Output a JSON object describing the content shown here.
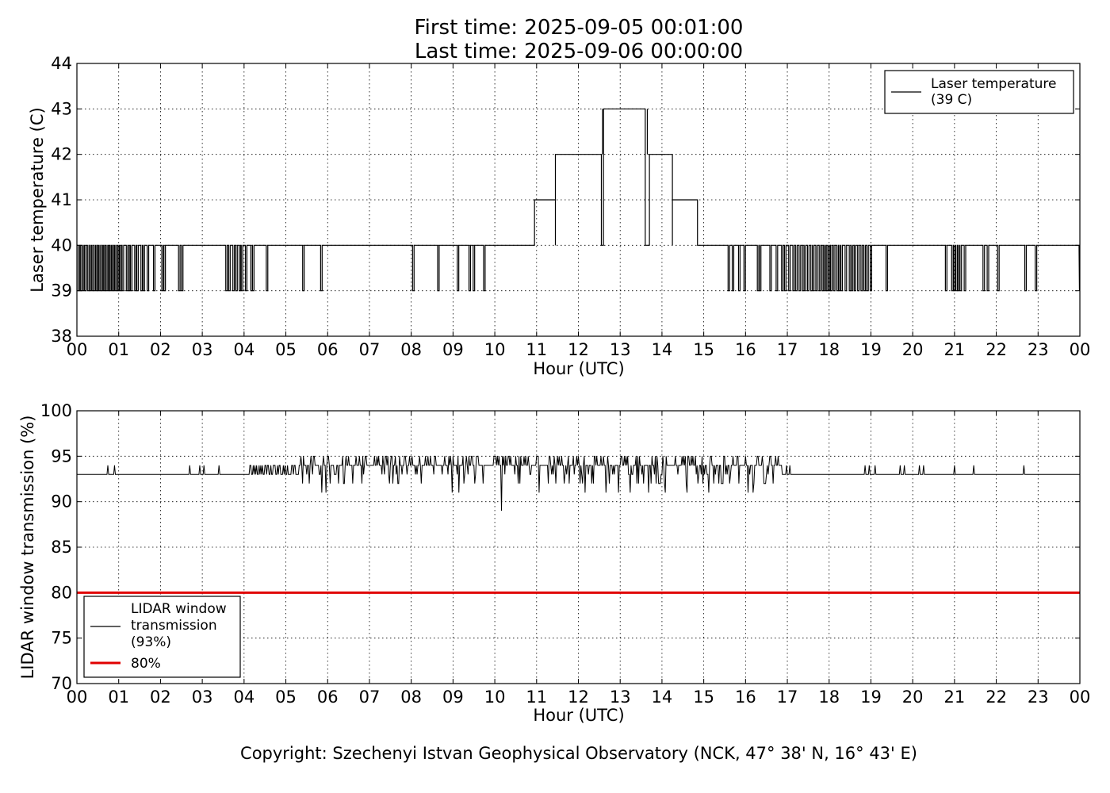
{
  "header": {
    "first_time": "First time: 2025-09-05 00:01:00",
    "last_time": "Last time: 2025-09-06 00:00:00"
  },
  "copyright": "Copyright: Szechenyi Istvan Geophysical Observatory (NCK, 47° 38' N, 16° 43' E)",
  "colors": {
    "series": "#000000",
    "threshold": "#e00000"
  },
  "chart_data": [
    {
      "type": "line",
      "xlabel": "Hour (UTC)",
      "ylabel": "Laser temperature (C)",
      "xlim": [
        0,
        24
      ],
      "ylim": [
        38,
        44
      ],
      "grid": true,
      "legend_position": "top-right",
      "x_tick_labels": [
        "00",
        "01",
        "02",
        "03",
        "04",
        "05",
        "06",
        "07",
        "08",
        "09",
        "10",
        "11",
        "12",
        "13",
        "14",
        "15",
        "16",
        "17",
        "18",
        "19",
        "20",
        "21",
        "22",
        "23",
        "00"
      ],
      "y_ticks": [
        38,
        39,
        40,
        41,
        42,
        43,
        44
      ],
      "legend": [
        "Laser temperature",
        "(39 C)"
      ],
      "base_level": 40,
      "levels": [
        {
          "from": 10.95,
          "to": 11.45,
          "y": 41
        },
        {
          "from": 11.45,
          "to": 12.55,
          "y": 42
        },
        {
          "from": 12.6,
          "to": 13.6,
          "y": 43
        },
        {
          "from": 13.7,
          "to": 14.25,
          "y": 42
        },
        {
          "from": 14.25,
          "to": 14.85,
          "y": 41
        }
      ],
      "dips": [
        0.05,
        0.1,
        0.15,
        0.2,
        0.27,
        0.32,
        0.38,
        0.42,
        0.47,
        0.5,
        0.55,
        0.6,
        0.65,
        0.68,
        0.72,
        0.77,
        0.8,
        0.85,
        0.88,
        0.93,
        0.97,
        1.0,
        1.05,
        1.1,
        1.2,
        1.25,
        1.3,
        1.4,
        1.45,
        1.55,
        1.6,
        1.7,
        1.85,
        2.05,
        2.1,
        2.45,
        2.52,
        3.58,
        3.65,
        3.75,
        3.82,
        3.9,
        3.95,
        4.05,
        4.18,
        4.22,
        4.55,
        5.42,
        5.85,
        8.05,
        8.65,
        9.12,
        9.4,
        9.5,
        9.75,
        15.6,
        15.7,
        15.85,
        15.98,
        16.3,
        16.35,
        16.6,
        16.75,
        16.88,
        16.95,
        17.05,
        17.15,
        17.22,
        17.3,
        17.38,
        17.42,
        17.5,
        17.58,
        17.62,
        17.7,
        17.78,
        17.85,
        17.9,
        17.95,
        18.0,
        18.05,
        18.12,
        18.2,
        18.25,
        18.3,
        18.4,
        18.5,
        18.55,
        18.62,
        18.7,
        18.78,
        18.85,
        18.92,
        19.0,
        19.38,
        20.8,
        20.95,
        21.0,
        21.05,
        21.1,
        21.15,
        21.25,
        21.7,
        21.8,
        22.05,
        22.7,
        22.95
      ]
    },
    {
      "type": "line",
      "xlabel": "Hour (UTC)",
      "ylabel": "LIDAR window transmission (%)",
      "xlim": [
        0,
        24
      ],
      "ylim": [
        70,
        100
      ],
      "grid": true,
      "legend_position": "lower-left",
      "x_tick_labels": [
        "00",
        "01",
        "02",
        "03",
        "04",
        "05",
        "06",
        "07",
        "08",
        "09",
        "10",
        "11",
        "12",
        "13",
        "14",
        "15",
        "16",
        "17",
        "18",
        "19",
        "20",
        "21",
        "22",
        "23",
        "00"
      ],
      "y_ticks": [
        70,
        75,
        80,
        85,
        90,
        95,
        100
      ],
      "series": [
        {
          "name": "LIDAR window transmission (93%)",
          "baseline": 93,
          "noisy_from": 5.3,
          "noisy_to": 16.8,
          "spikes": [
            0.75,
            0.9,
            2.7,
            2.95,
            3.05,
            3.4,
            4.15,
            4.25,
            4.4,
            4.55,
            4.7,
            17.05,
            18.85,
            18.95,
            19.1,
            19.7,
            19.8,
            20.15,
            20.25,
            21.0,
            21.45,
            22.65
          ],
          "min_dip": {
            "x": 10.15,
            "y": 89
          }
        },
        {
          "name": "80%",
          "values": [
            80,
            80
          ],
          "x": [
            0,
            24
          ]
        }
      ],
      "legend": [
        "LIDAR window",
        "transmission",
        "(93%)",
        "80%"
      ]
    }
  ]
}
